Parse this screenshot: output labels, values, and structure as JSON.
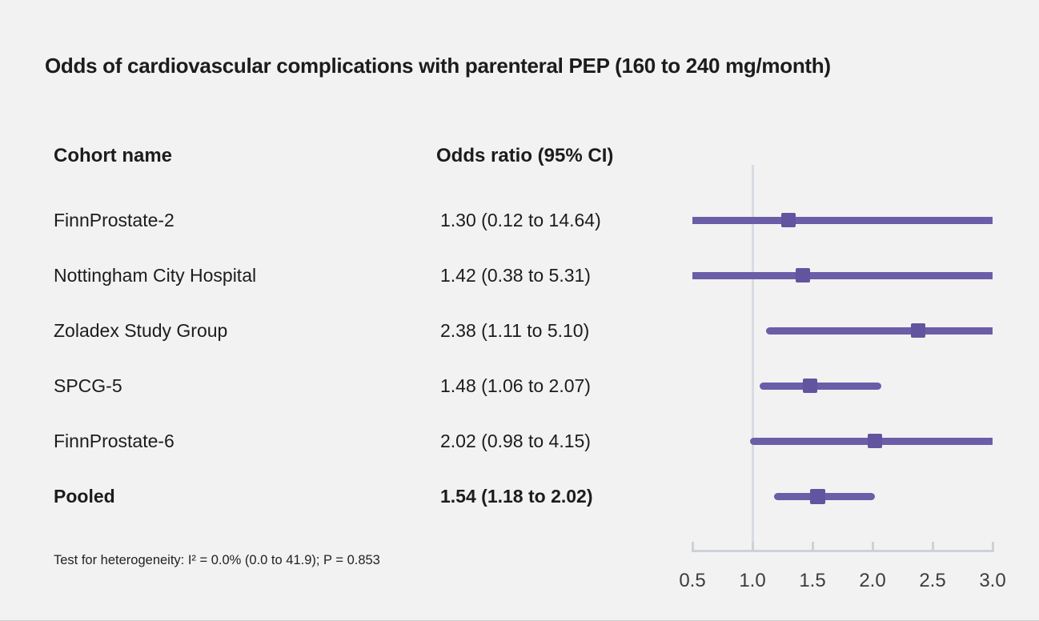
{
  "title": "Odds of cardiovascular complications with parenteral PEP (160 to 240 mg/month)",
  "columns": {
    "cohort": "Cohort name",
    "or": "Odds ratio (95% CI)"
  },
  "rows": [
    {
      "label": "FinnProstate-2",
      "value": "1.30 (0.12 to 14.64)",
      "bold": false
    },
    {
      "label": "Nottingham City Hospital",
      "value": "1.42 (0.38 to 5.31)",
      "bold": false
    },
    {
      "label": "Zoladex Study Group",
      "value": "2.38 (1.11 to 5.10)",
      "bold": false
    },
    {
      "label": "SPCG-5",
      "value": "1.48 (1.06 to 2.07)",
      "bold": false
    },
    {
      "label": "FinnProstate-6",
      "value": "2.02 (0.98 to 4.15)",
      "bold": false
    },
    {
      "label": "Pooled",
      "value": "1.54 (1.18 to 2.02)",
      "bold": true
    }
  ],
  "footnote": "Test for heterogeneity: I² = 0.0% (0.0 to 41.9); P = 0.853",
  "chart_data": {
    "type": "scatter",
    "variant": "forest-plot",
    "title": "Odds of cardiovascular complications with parenteral PEP (160 to 240 mg/month)",
    "xlabel": "",
    "ylabel": "",
    "x_axis": {
      "scale": "linear",
      "range": [
        0.5,
        3.0
      ],
      "ticks": [
        0.5,
        1.0,
        1.5,
        2.0,
        2.5,
        3.0
      ],
      "tick_labels": [
        "0.5",
        "1.0",
        "1.5",
        "2.0",
        "2.5",
        "3.0"
      ],
      "reference_line": 1.0
    },
    "points": [
      {
        "label": "FinnProstate-2",
        "or": 1.3,
        "ci_low": 0.12,
        "ci_high": 14.64,
        "pooled": false
      },
      {
        "label": "Nottingham City Hospital",
        "or": 1.42,
        "ci_low": 0.38,
        "ci_high": 5.31,
        "pooled": false
      },
      {
        "label": "Zoladex Study Group",
        "or": 2.38,
        "ci_low": 1.11,
        "ci_high": 5.1,
        "pooled": false
      },
      {
        "label": "SPCG-5",
        "or": 1.48,
        "ci_low": 1.06,
        "ci_high": 2.07,
        "pooled": false
      },
      {
        "label": "FinnProstate-6",
        "or": 2.02,
        "ci_low": 0.98,
        "ci_high": 4.15,
        "pooled": false
      },
      {
        "label": "Pooled",
        "or": 1.54,
        "ci_low": 1.18,
        "ci_high": 2.02,
        "pooled": true
      }
    ]
  },
  "colors": {
    "ci_line": "#6c5da9",
    "marker": "#63549f",
    "reference_line": "#d8dbe2",
    "axis": "#cdd1d8",
    "background": "#f2f2f2",
    "text": "#1c1c1c",
    "tick_label": "#3c3c3c"
  }
}
